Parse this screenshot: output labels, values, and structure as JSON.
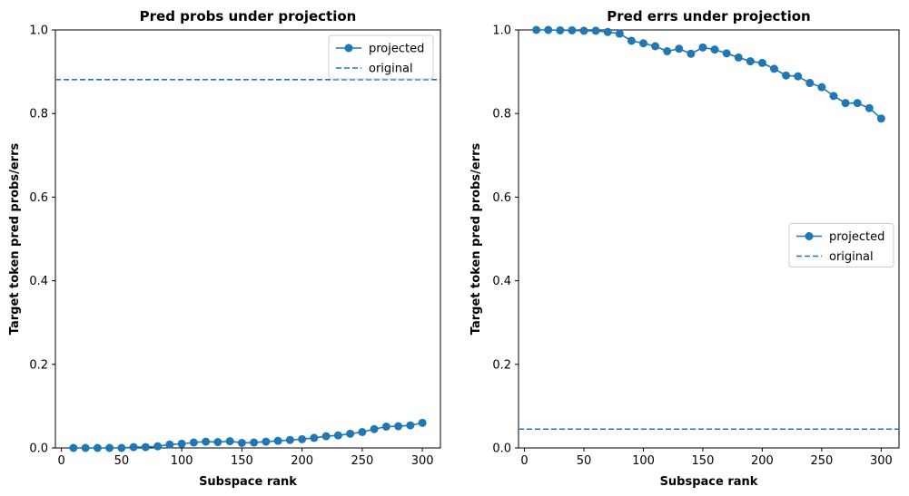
{
  "colors": {
    "series": "#1f77b4",
    "axis": "#000000",
    "legend_border": "#cccccc"
  },
  "chart_data": [
    {
      "type": "line",
      "title": "Pred probs under projection",
      "xlabel": "Subspace rank",
      "ylabel": "Target token pred probs/errs",
      "xlim": [
        -5,
        315
      ],
      "ylim": [
        0,
        1
      ],
      "xticks": [
        "0",
        "50",
        "100",
        "150",
        "200",
        "250",
        "300"
      ],
      "yticks": [
        "0.0",
        "0.2",
        "0.4",
        "0.6",
        "0.8",
        "1.0"
      ],
      "legend_position": "upper-right",
      "series": [
        {
          "name": "projected",
          "style": "line-with-markers",
          "x": [
            10,
            20,
            30,
            40,
            50,
            60,
            70,
            80,
            90,
            100,
            110,
            120,
            130,
            140,
            150,
            160,
            170,
            180,
            190,
            200,
            210,
            220,
            230,
            240,
            250,
            260,
            270,
            280,
            290,
            300
          ],
          "y": [
            0.0,
            0.0,
            0.0,
            0.0,
            0.0,
            0.002,
            0.002,
            0.004,
            0.008,
            0.01,
            0.013,
            0.015,
            0.014,
            0.016,
            0.012,
            0.013,
            0.015,
            0.017,
            0.019,
            0.021,
            0.024,
            0.028,
            0.03,
            0.034,
            0.038,
            0.045,
            0.051,
            0.052,
            0.054,
            0.06
          ]
        },
        {
          "name": "original",
          "style": "dashed-hline",
          "y": 0.881
        }
      ]
    },
    {
      "type": "line",
      "title": "Pred errs under projection",
      "xlabel": "Subspace rank",
      "ylabel": "Target token pred probs/errs",
      "xlim": [
        -5,
        315
      ],
      "ylim": [
        0,
        1
      ],
      "xticks": [
        "0",
        "50",
        "100",
        "150",
        "200",
        "250",
        "300"
      ],
      "yticks": [
        "0.0",
        "0.2",
        "0.4",
        "0.6",
        "0.8",
        "1.0"
      ],
      "legend_position": "center-right",
      "series": [
        {
          "name": "projected",
          "style": "line-with-markers",
          "x": [
            10,
            20,
            30,
            40,
            50,
            60,
            70,
            80,
            90,
            100,
            110,
            120,
            130,
            140,
            150,
            160,
            170,
            180,
            190,
            200,
            210,
            220,
            230,
            240,
            250,
            260,
            270,
            280,
            290,
            300
          ],
          "y": [
            1.0,
            1.0,
            0.999,
            0.999,
            0.998,
            0.998,
            0.995,
            0.991,
            0.974,
            0.968,
            0.961,
            0.949,
            0.955,
            0.943,
            0.958,
            0.953,
            0.944,
            0.934,
            0.925,
            0.921,
            0.907,
            0.891,
            0.889,
            0.873,
            0.863,
            0.842,
            0.825,
            0.825,
            0.813,
            0.788
          ]
        },
        {
          "name": "original",
          "style": "dashed-hline",
          "y": 0.045
        }
      ]
    }
  ]
}
